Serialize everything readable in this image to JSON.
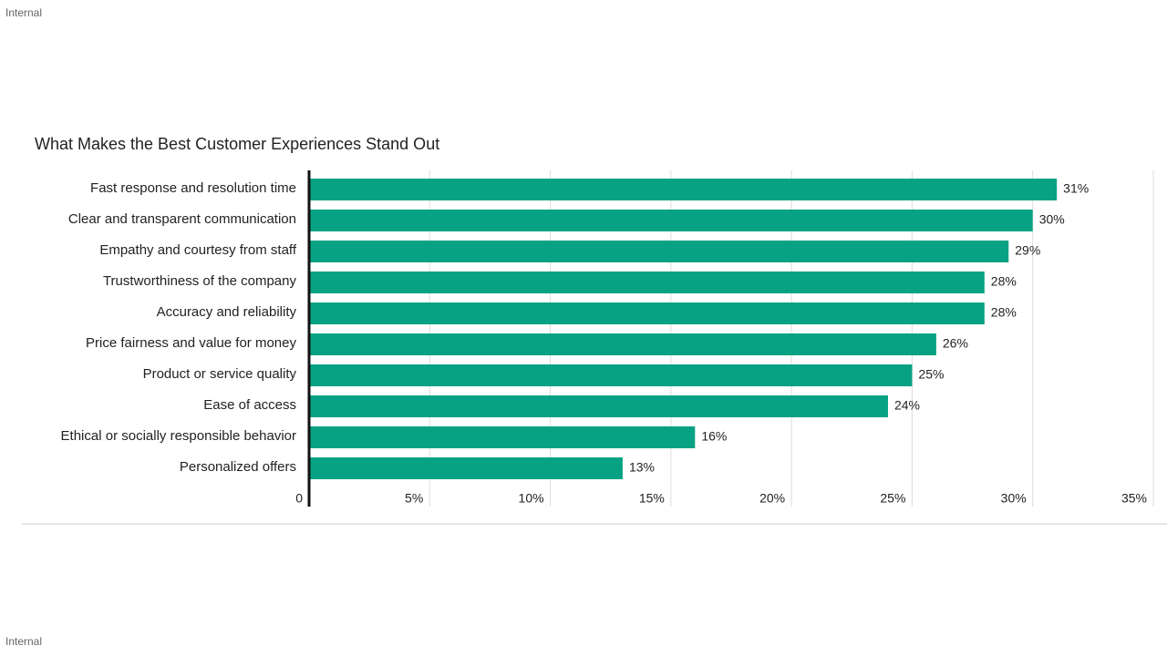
{
  "page": {
    "top_label": "Internal",
    "bottom_label": "Internal"
  },
  "chart_data": {
    "type": "bar",
    "orientation": "horizontal",
    "title": "What Makes the Best Customer Experiences Stand Out",
    "categories": [
      "Fast response and resolution time",
      "Clear and transparent communication",
      "Empathy and courtesy from staff",
      "Trustworthiness of the company",
      "Accuracy and reliability",
      "Price fairness and value for money",
      "Product or service quality",
      "Ease of access",
      "Ethical or socially responsible behavior",
      "Personalized offers"
    ],
    "values": [
      31,
      30,
      29,
      28,
      28,
      26,
      25,
      24,
      16,
      13
    ],
    "value_labels": [
      "31%",
      "30%",
      "29%",
      "28%",
      "28%",
      "26%",
      "25%",
      "24%",
      "16%",
      "13%"
    ],
    "color": "#07a283",
    "xlim": [
      0,
      35
    ],
    "xticks": [
      0,
      {
        "value": 5,
        "label": "5%"
      },
      {
        "value": 10,
        "label": "10%"
      },
      {
        "value": 15,
        "label": "15%"
      },
      {
        "value": 20,
        "label": "20%"
      },
      {
        "value": 25,
        "label": "25%"
      },
      {
        "value": 30,
        "label": "30%"
      },
      {
        "value": 35,
        "label": "35%"
      }
    ],
    "grid": true
  }
}
